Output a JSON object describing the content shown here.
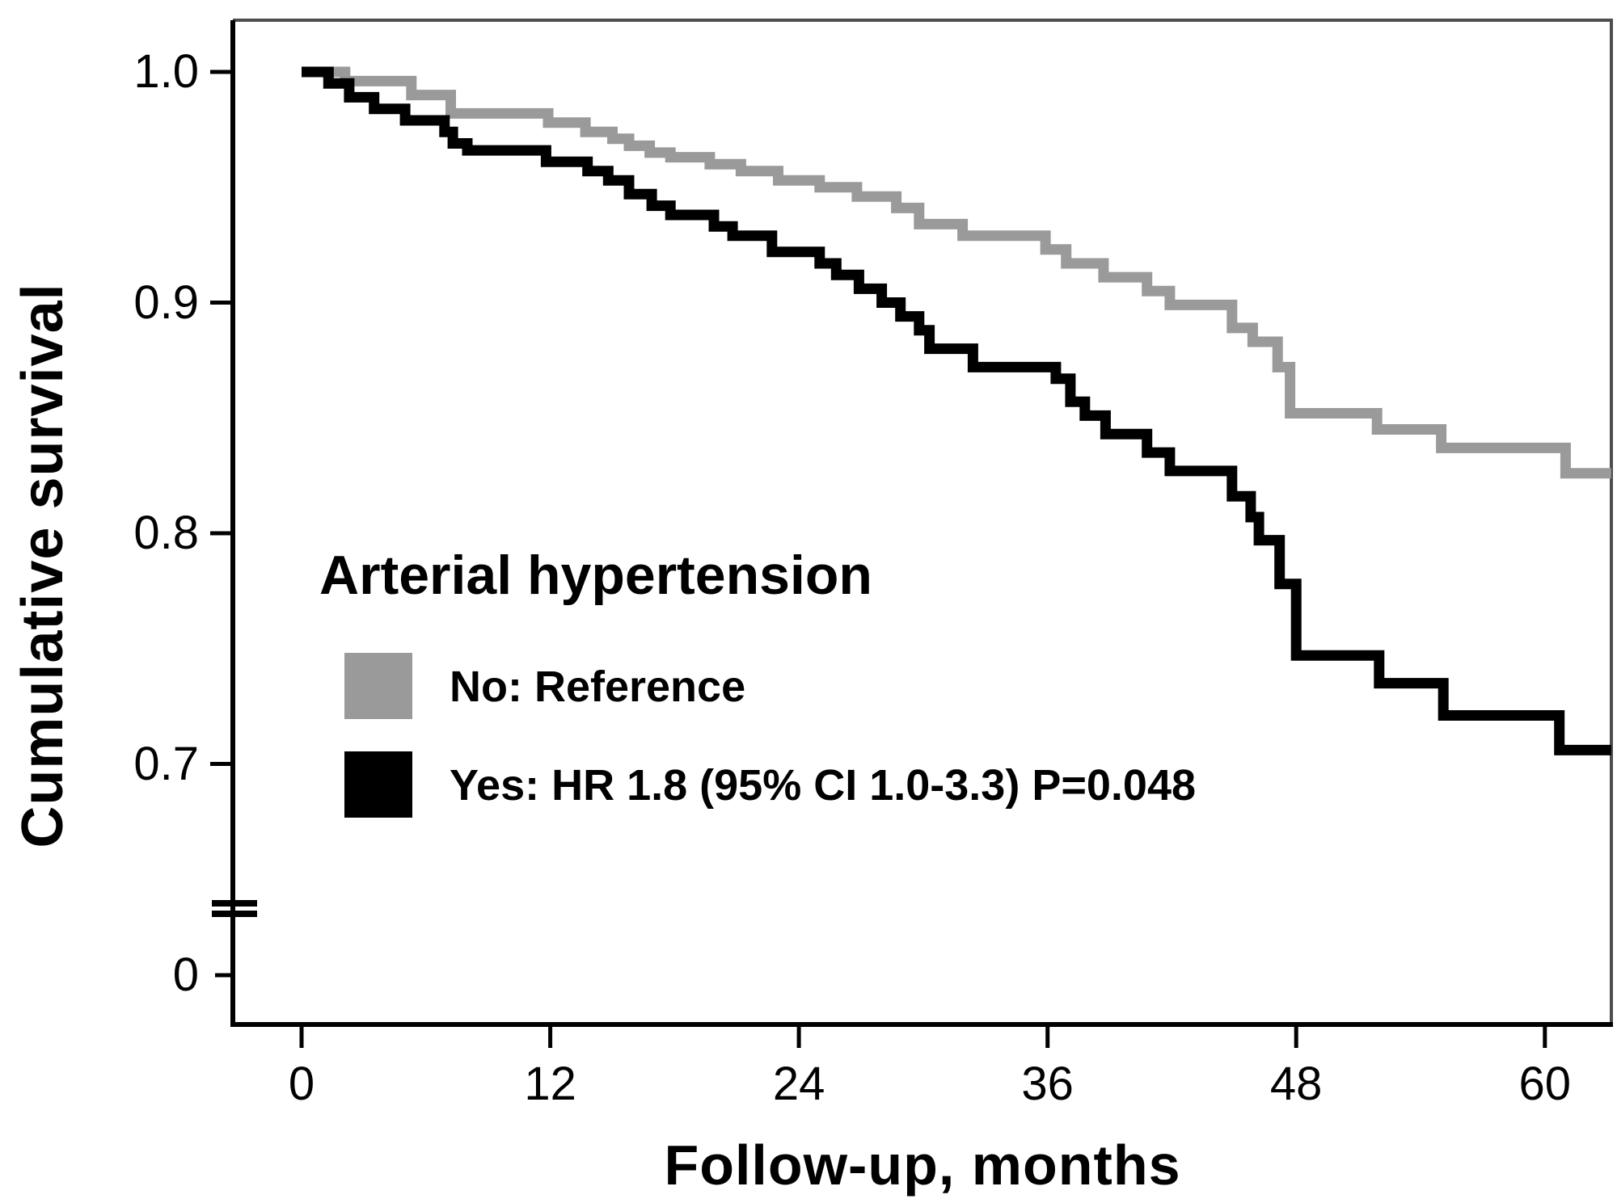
{
  "figure": {
    "y_axis": {
      "label": "Cumulative survival",
      "tick_labels": [
        "1.0",
        "0.9",
        "0.8",
        "0.7",
        "0"
      ],
      "has_axis_break": true
    },
    "x_axis": {
      "label": "Follow-up, months",
      "tick_labels": [
        "0",
        "12",
        "24",
        "36",
        "48",
        "60"
      ]
    }
  },
  "legend": {
    "title": "Arterial hypertension",
    "items": [
      {
        "label": "No: Reference",
        "color": "#9a9a9a"
      },
      {
        "label": "Yes: HR 1.8 (95% CI 1.0-3.3) P=0.048",
        "color": "#000000"
      }
    ]
  },
  "chart_data": {
    "type": "line",
    "subtype": "kaplan_meier_step",
    "title": "Arterial hypertension",
    "xlabel": "Follow-up, months",
    "ylabel": "Cumulative survival",
    "xlim": [
      0,
      63.2
    ],
    "ylim_displayed": [
      0.65,
      1.0
    ],
    "y_axis_break_to_zero": true,
    "x_ticks": [
      0,
      12,
      24,
      36,
      48,
      60
    ],
    "y_ticks": [
      1.0,
      0.9,
      0.8,
      0.7,
      0
    ],
    "grid": false,
    "legend_position": "inside-middle-left",
    "series": [
      {
        "name": "No: Reference",
        "color": "#9a9a9a",
        "end_x": 63.2,
        "steps": [
          [
            0,
            1.0
          ],
          [
            2.1,
            0.996
          ],
          [
            5.3,
            0.99
          ],
          [
            7.2,
            0.982
          ],
          [
            11.9,
            0.978
          ],
          [
            13.7,
            0.974
          ],
          [
            15.0,
            0.971
          ],
          [
            15.8,
            0.968
          ],
          [
            16.8,
            0.965
          ],
          [
            17.8,
            0.963
          ],
          [
            19.7,
            0.96
          ],
          [
            21.2,
            0.957
          ],
          [
            23.0,
            0.953
          ],
          [
            25.0,
            0.95
          ],
          [
            26.8,
            0.946
          ],
          [
            28.7,
            0.941
          ],
          [
            29.8,
            0.934
          ],
          [
            31.9,
            0.929
          ],
          [
            35.9,
            0.923
          ],
          [
            36.9,
            0.917
          ],
          [
            38.7,
            0.911
          ],
          [
            40.8,
            0.905
          ],
          [
            41.9,
            0.899
          ],
          [
            44.9,
            0.889
          ],
          [
            45.9,
            0.883
          ],
          [
            47.1,
            0.872
          ],
          [
            47.7,
            0.852
          ],
          [
            51.9,
            0.845
          ],
          [
            55.0,
            0.837
          ],
          [
            61.0,
            0.826
          ]
        ]
      },
      {
        "name": "Yes: HR 1.8 (95% CI 1.0-3.3) P=0.048",
        "color": "#000000",
        "end_x": 63.2,
        "steps": [
          [
            0,
            1.0
          ],
          [
            1.3,
            0.995
          ],
          [
            2.3,
            0.989
          ],
          [
            3.5,
            0.984
          ],
          [
            5.0,
            0.979
          ],
          [
            6.9,
            0.974
          ],
          [
            7.3,
            0.969
          ],
          [
            8.0,
            0.966
          ],
          [
            11.8,
            0.961
          ],
          [
            13.8,
            0.957
          ],
          [
            14.8,
            0.953
          ],
          [
            15.8,
            0.947
          ],
          [
            16.9,
            0.942
          ],
          [
            17.8,
            0.938
          ],
          [
            19.9,
            0.933
          ],
          [
            20.8,
            0.929
          ],
          [
            22.7,
            0.922
          ],
          [
            25.0,
            0.917
          ],
          [
            25.8,
            0.912
          ],
          [
            26.9,
            0.906
          ],
          [
            28.0,
            0.9
          ],
          [
            28.9,
            0.894
          ],
          [
            29.8,
            0.888
          ],
          [
            30.3,
            0.88
          ],
          [
            32.4,
            0.872
          ],
          [
            36.4,
            0.867
          ],
          [
            37.1,
            0.857
          ],
          [
            37.8,
            0.851
          ],
          [
            38.8,
            0.843
          ],
          [
            40.8,
            0.835
          ],
          [
            41.9,
            0.827
          ],
          [
            44.9,
            0.816
          ],
          [
            45.8,
            0.807
          ],
          [
            46.2,
            0.797
          ],
          [
            47.2,
            0.778
          ],
          [
            48.0,
            0.747
          ],
          [
            52.0,
            0.735
          ],
          [
            55.1,
            0.721
          ],
          [
            60.7,
            0.706
          ]
        ]
      }
    ]
  }
}
